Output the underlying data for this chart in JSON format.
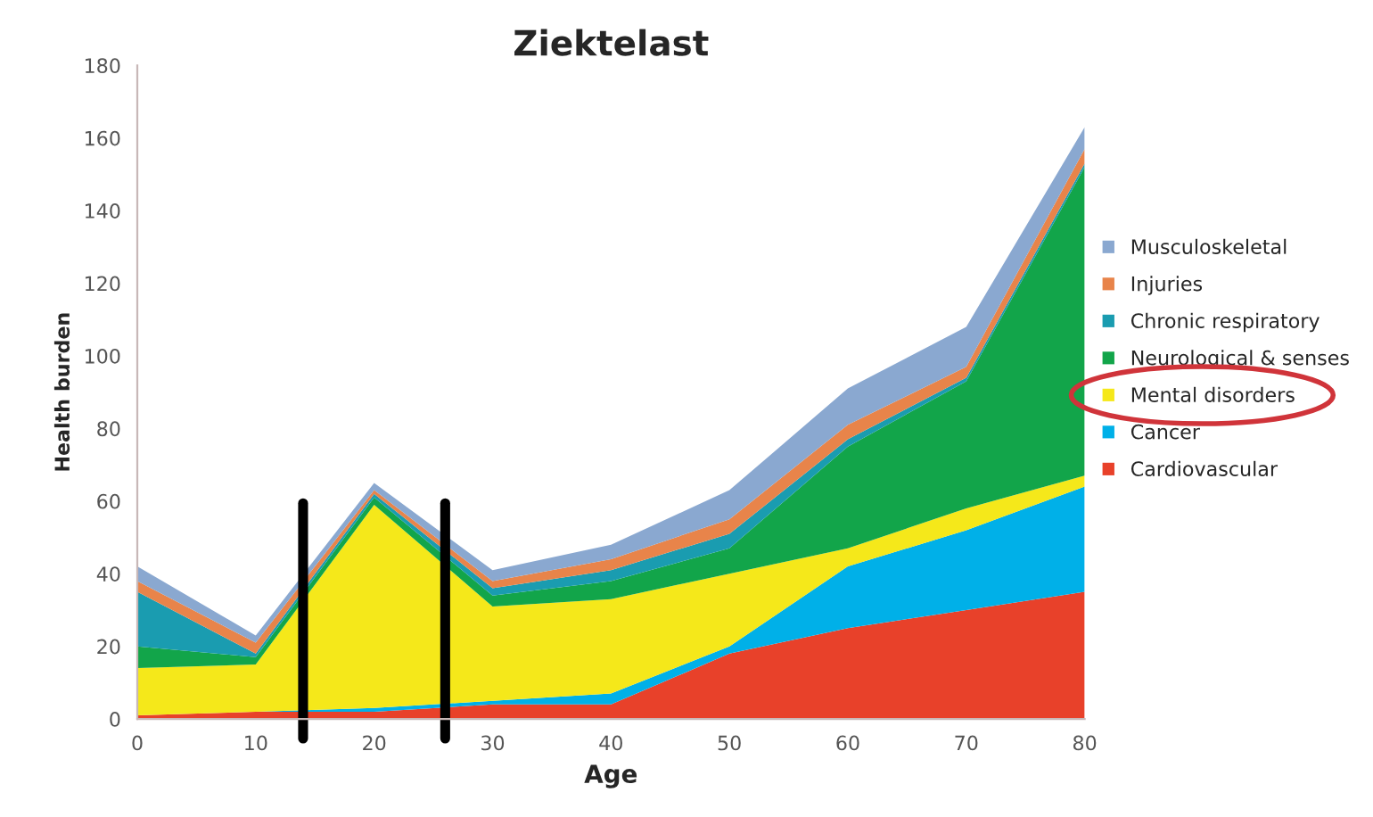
{
  "chart_data": {
    "type": "area",
    "title": "Ziektelast",
    "xlabel": "Age",
    "ylabel": "Health burden",
    "x": [
      0,
      10,
      20,
      30,
      40,
      50,
      60,
      70,
      80
    ],
    "stacked": true,
    "series": [
      {
        "name": "Cardiovascular",
        "color": "#e8412a",
        "values": [
          1,
          2,
          2,
          4,
          4,
          18,
          25,
          30,
          35
        ]
      },
      {
        "name": "Cancer",
        "color": "#00b0e8",
        "values": [
          0,
          0,
          1,
          1,
          3,
          2,
          17,
          22,
          29
        ]
      },
      {
        "name": "Mental disorders",
        "color": "#f5e81a",
        "values": [
          13,
          13,
          56,
          26,
          26,
          20,
          5,
          6,
          3
        ]
      },
      {
        "name": "Neurological & senses",
        "color": "#12a54a",
        "values": [
          6,
          2,
          2,
          3,
          5,
          7,
          28,
          35,
          85
        ]
      },
      {
        "name": "Chronic respiratory",
        "color": "#1a9cb0",
        "values": [
          15,
          1,
          1,
          2,
          3,
          4,
          2,
          1,
          1
        ]
      },
      {
        "name": "Injuries",
        "color": "#e8844a",
        "values": [
          3,
          3,
          1,
          2,
          3,
          4,
          4,
          3,
          4
        ]
      },
      {
        "name": "Musculoskeletal",
        "color": "#8aa8d0",
        "values": [
          4,
          2,
          2,
          3,
          4,
          8,
          10,
          11,
          6
        ]
      }
    ],
    "xlim": [
      0,
      80
    ],
    "xticks": [
      0,
      10,
      20,
      30,
      40,
      50,
      60,
      70,
      80
    ],
    "ylim": [
      0,
      180
    ],
    "yticks": [
      0,
      20,
      40,
      60,
      80,
      100,
      120,
      140,
      160,
      180
    ],
    "ref_lines": [
      {
        "axis": "x",
        "value": 14,
        "color": "#000000"
      },
      {
        "axis": "x",
        "value": 26,
        "color": "#000000"
      }
    ],
    "grid": false,
    "legend": "right"
  }
}
